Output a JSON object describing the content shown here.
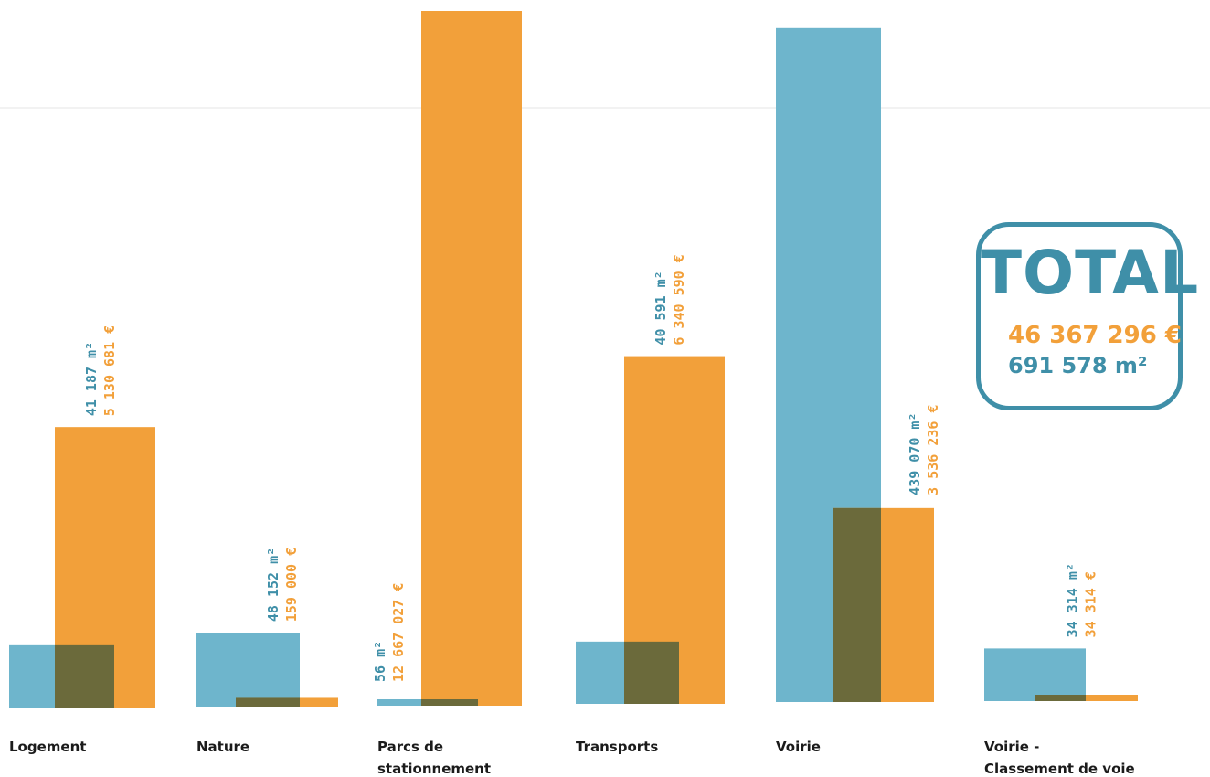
{
  "chart_data": {
    "type": "bar",
    "categories": [
      "Logement",
      "Nature",
      "Parcs de stationnement",
      "Transports",
      "Voirie",
      "Voirie - Classement de voie"
    ],
    "category_lines": [
      [
        "Logement"
      ],
      [
        "Nature"
      ],
      [
        "Parcs de",
        "stationnement"
      ],
      [
        "Transports"
      ],
      [
        "Voirie"
      ],
      [
        "Voirie -",
        "Classement de voie"
      ]
    ],
    "series": [
      {
        "values": [
          41187,
          48152,
          56,
          40591,
          439070,
          34314
        ]
      },
      {
        "values": [
          5130681,
          159000,
          12667027,
          6340590,
          3536236,
          34314
        ]
      }
    ],
    "value_labels_area": [
      "41 187 m²",
      "48 152 m²",
      "56 m²",
      "40 591 m²",
      "439 070 m²",
      "34 314 m²"
    ],
    "value_labels_money": [
      "5 130 681 €",
      "159 000 €",
      "12 667 027 €",
      "6 340 590 €",
      "3 536 236 €",
      "34 314 €"
    ],
    "colors": {
      "area": "#6eb5cc",
      "money": "#f2a03a",
      "overlap": "#6b6a3b"
    }
  },
  "total": {
    "title": "TOTAL",
    "money": "46 367 296 €",
    "area": "691 578 m²"
  }
}
